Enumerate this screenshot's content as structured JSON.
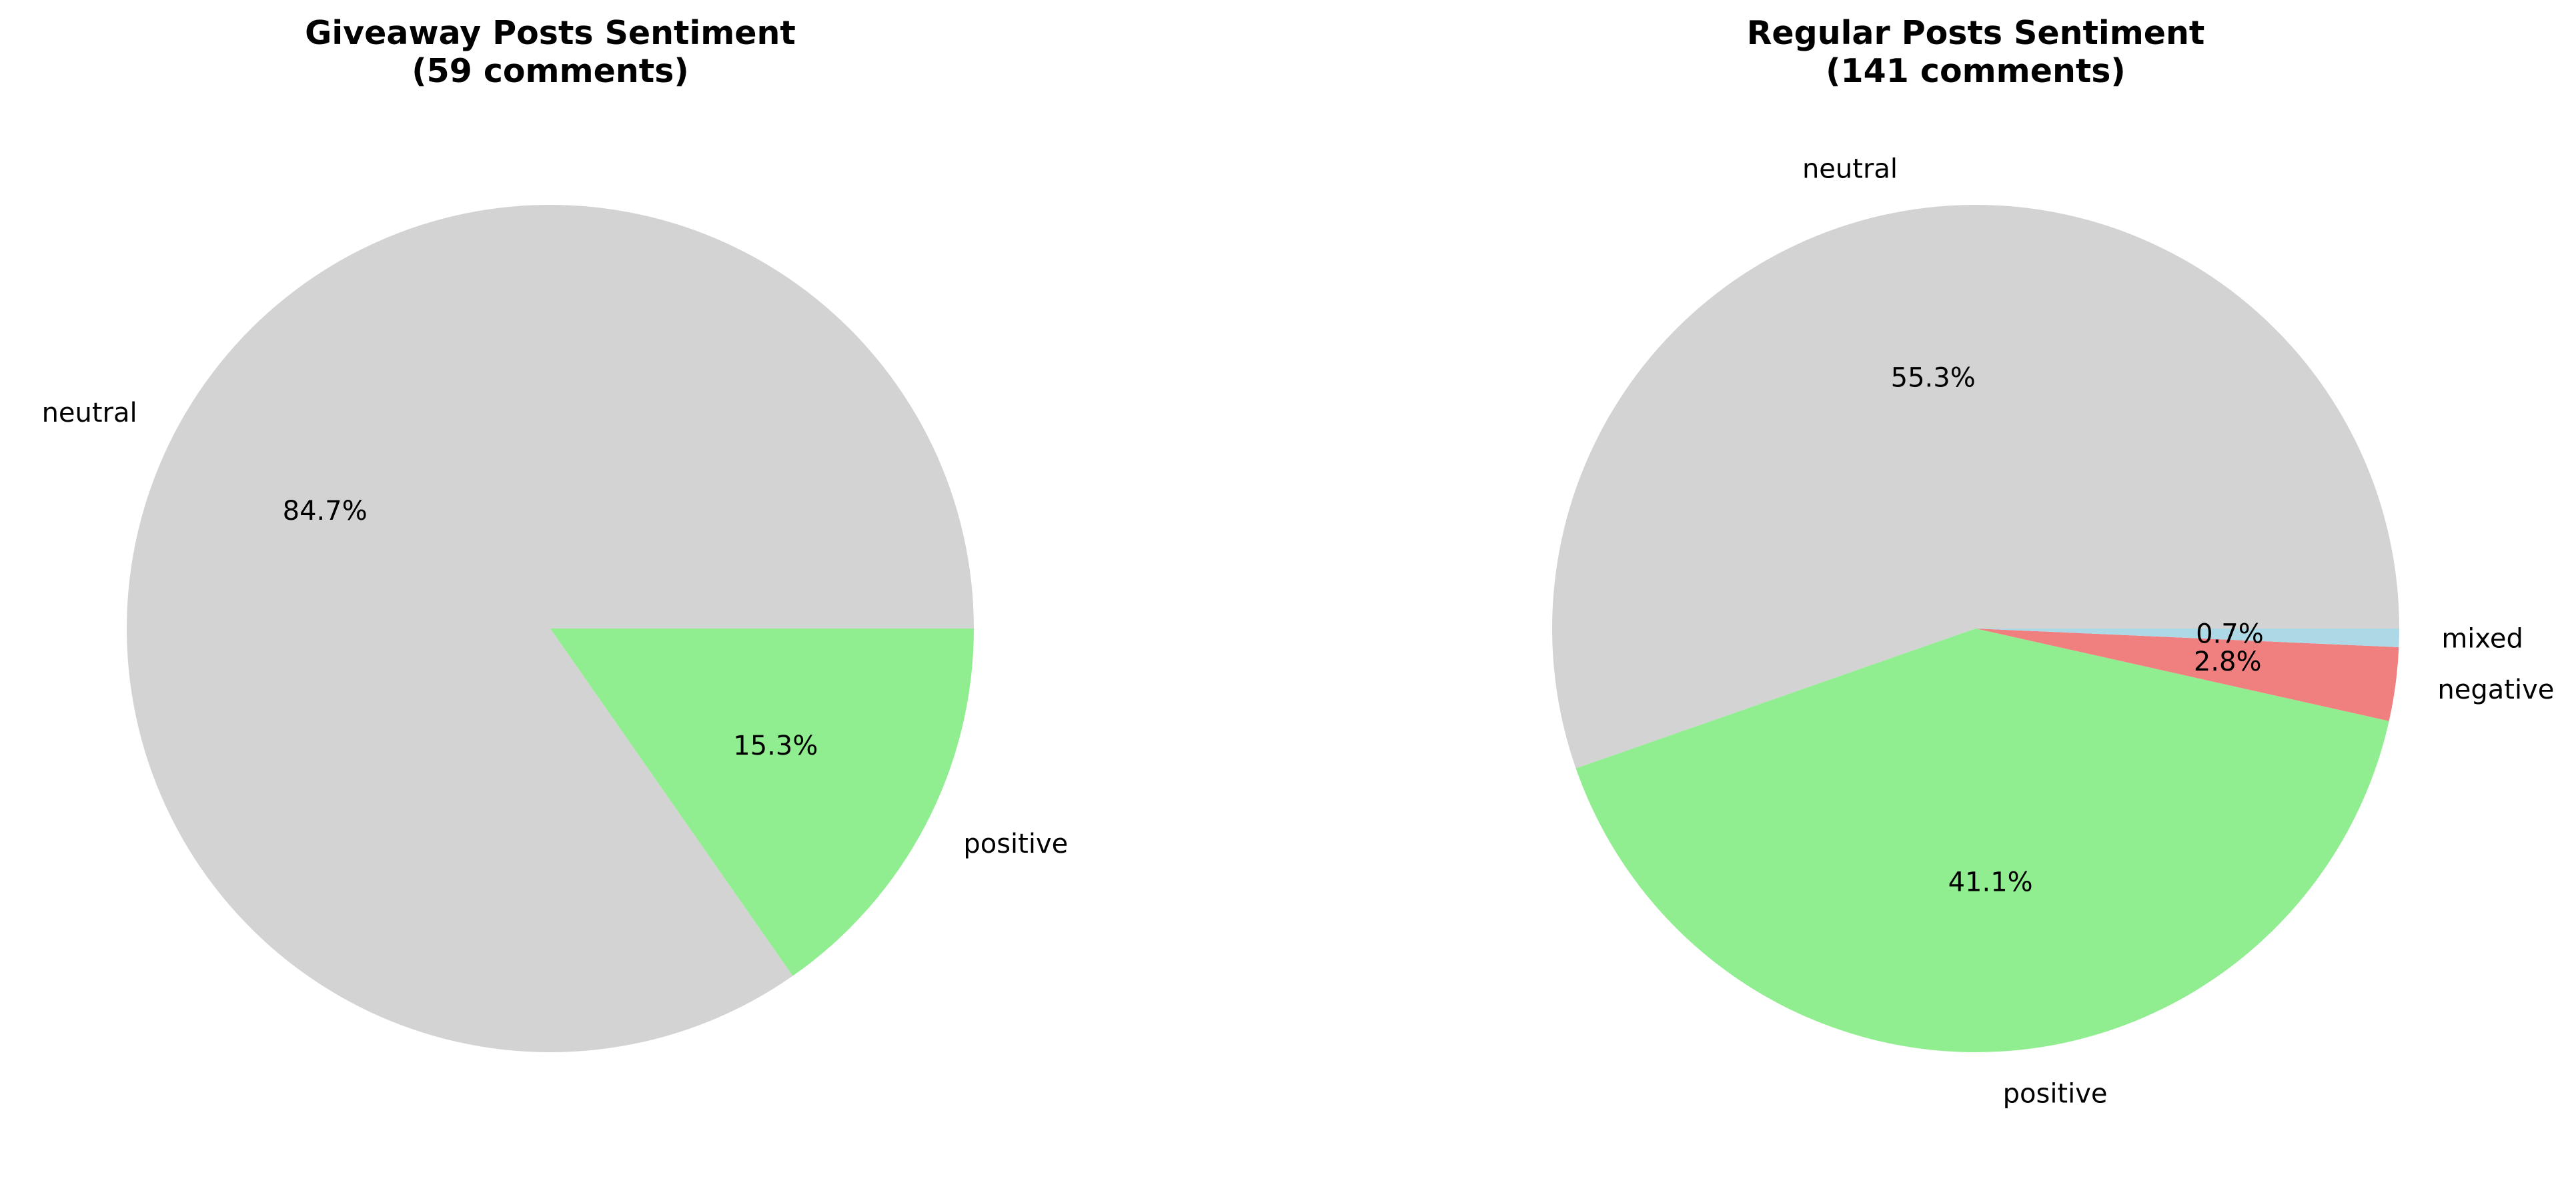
{
  "chart_data": [
    {
      "type": "pie",
      "title_line1": "Giveaway Posts Sentiment",
      "title_line2": "(59 comments)",
      "start_angle_deg": 0,
      "direction": "counterclockwise",
      "slices": [
        {
          "label": "neutral",
          "value": 84.7,
          "pct_text": "84.7%",
          "color": "#d3d3d3"
        },
        {
          "label": "positive",
          "value": 15.3,
          "pct_text": "15.3%",
          "color": "#90ee90"
        }
      ]
    },
    {
      "type": "pie",
      "title_line1": "Regular Posts Sentiment",
      "title_line2": "(141 comments)",
      "start_angle_deg": 0,
      "direction": "counterclockwise",
      "slices": [
        {
          "label": "neutral",
          "value": 55.3,
          "pct_text": "55.3%",
          "color": "#d3d3d3"
        },
        {
          "label": "positive",
          "value": 41.1,
          "pct_text": "41.1%",
          "color": "#90ee90"
        },
        {
          "label": "negative",
          "value": 2.8,
          "pct_text": "2.8%",
          "color": "#f08080"
        },
        {
          "label": "mixed",
          "value": 0.7,
          "pct_text": "0.7%",
          "color": "#add8e6"
        }
      ]
    }
  ]
}
